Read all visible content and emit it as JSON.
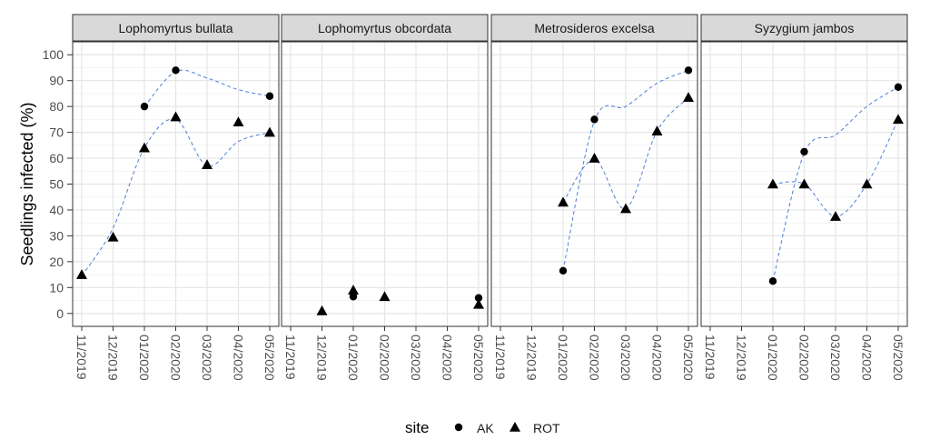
{
  "chart_data": {
    "type": "scatter",
    "ylabel": "Seedlings infected (%)",
    "xlabel": "",
    "ylim": [
      -5,
      105
    ],
    "y_ticks": [
      0,
      10,
      20,
      30,
      40,
      50,
      60,
      70,
      80,
      90,
      100
    ],
    "x_tick_labels": [
      "11/2019",
      "12/2019",
      "01/2020",
      "02/2020",
      "03/2020",
      "04/2020",
      "05/2020"
    ],
    "grid": true,
    "legend": {
      "title": "site",
      "position": "bottom",
      "entries": [
        {
          "label": "AK",
          "shape": "circle"
        },
        {
          "label": "ROT",
          "shape": "triangle"
        }
      ]
    },
    "trend_line": {
      "style": "dashed",
      "color": "#4f7fd8"
    },
    "panels": [
      {
        "title": "Lophomyrtus bullata",
        "series": [
          {
            "name": "AK",
            "points": [
              {
                "x": "01/2020",
                "y": 80
              },
              {
                "x": "02/2020",
                "y": 94
              },
              {
                "x": "05/2020",
                "y": 84
              }
            ]
          },
          {
            "name": "ROT",
            "points": [
              {
                "x": "11/2019",
                "y": 15
              },
              {
                "x": "12/2019",
                "y": 29.5
              },
              {
                "x": "01/2020",
                "y": 64
              },
              {
                "x": "02/2020",
                "y": 76
              },
              {
                "x": "03/2020",
                "y": 57.5
              },
              {
                "x": "04/2020",
                "y": 74
              },
              {
                "x": "05/2020",
                "y": 70
              }
            ]
          }
        ],
        "trends": [
          [
            [
              "01/2020",
              80
            ],
            [
              "02/2020",
              93.5
            ],
            [
              "03/2020",
              91
            ],
            [
              "04/2020",
              86.5
            ],
            [
              "05/2020",
              84
            ]
          ],
          [
            [
              "11/2019",
              14.5
            ],
            [
              "12/2019",
              33
            ],
            [
              "01/2020",
              64
            ],
            [
              "02/2020",
              75
            ],
            [
              "03/2020",
              57
            ],
            [
              "04/2020",
              66.5
            ],
            [
              "05/2020",
              70
            ]
          ]
        ]
      },
      {
        "title": "Lophomyrtus obcordata",
        "series": [
          {
            "name": "AK",
            "points": [
              {
                "x": "01/2020",
                "y": 6.5
              },
              {
                "x": "05/2020",
                "y": 6
              }
            ]
          },
          {
            "name": "ROT",
            "points": [
              {
                "x": "12/2019",
                "y": 1
              },
              {
                "x": "01/2020",
                "y": 9
              },
              {
                "x": "02/2020",
                "y": 6.5
              },
              {
                "x": "05/2020",
                "y": 3.5
              }
            ]
          }
        ],
        "trends": []
      },
      {
        "title": "Metrosideros excelsa",
        "series": [
          {
            "name": "AK",
            "points": [
              {
                "x": "01/2020",
                "y": 16.5
              },
              {
                "x": "02/2020",
                "y": 75
              },
              {
                "x": "05/2020",
                "y": 94
              }
            ]
          },
          {
            "name": "ROT",
            "points": [
              {
                "x": "01/2020",
                "y": 43
              },
              {
                "x": "02/2020",
                "y": 60
              },
              {
                "x": "03/2020",
                "y": 40.5
              },
              {
                "x": "04/2020",
                "y": 70.5
              },
              {
                "x": "05/2020",
                "y": 83.5
              }
            ]
          }
        ],
        "trends": [
          [
            [
              "01/2020",
              16.5
            ],
            [
              "02/2020",
              74.5
            ],
            [
              "03/2020",
              80
            ],
            [
              "04/2020",
              89
            ],
            [
              "05/2020",
              94
            ]
          ],
          [
            [
              "01/2020",
              43
            ],
            [
              "02/2020",
              59.5
            ],
            [
              "03/2020",
              40.5
            ],
            [
              "04/2020",
              70.5
            ],
            [
              "05/2020",
              83.5
            ]
          ]
        ]
      },
      {
        "title": "Syzygium jambos",
        "series": [
          {
            "name": "AK",
            "points": [
              {
                "x": "01/2020",
                "y": 12.5
              },
              {
                "x": "02/2020",
                "y": 62.5
              },
              {
                "x": "05/2020",
                "y": 87.5
              }
            ]
          },
          {
            "name": "ROT",
            "points": [
              {
                "x": "01/2020",
                "y": 50
              },
              {
                "x": "02/2020",
                "y": 50
              },
              {
                "x": "03/2020",
                "y": 37.5
              },
              {
                "x": "04/2020",
                "y": 50
              },
              {
                "x": "05/2020",
                "y": 75
              }
            ]
          }
        ],
        "trends": [
          [
            [
              "01/2020",
              12.5
            ],
            [
              "02/2020",
              62
            ],
            [
              "03/2020",
              69
            ],
            [
              "04/2020",
              80
            ],
            [
              "05/2020",
              87.5
            ]
          ],
          [
            [
              "01/2020",
              50
            ],
            [
              "02/2020",
              50
            ],
            [
              "03/2020",
              37.5
            ],
            [
              "04/2020",
              50
            ],
            [
              "05/2020",
              75
            ]
          ]
        ]
      }
    ]
  }
}
